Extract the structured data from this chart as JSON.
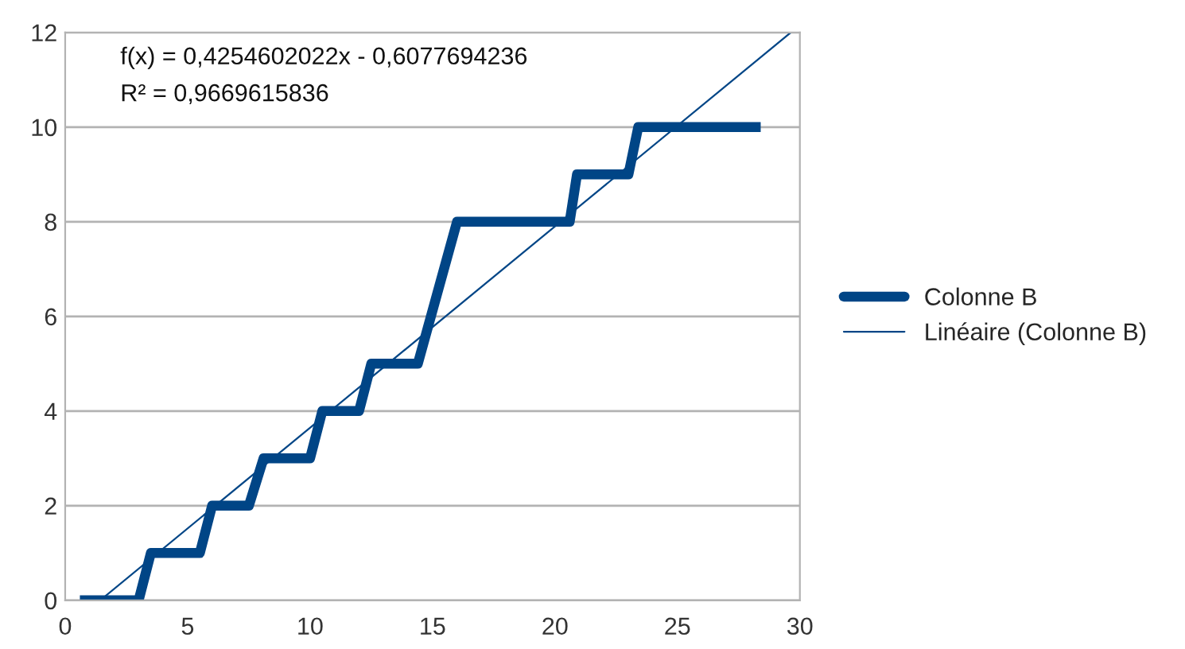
{
  "chart_data": {
    "type": "line",
    "annotations": [
      "f(x) = 0,4254602022x - 0,6077694236",
      "R² = 0,9669615836"
    ],
    "xlim": [
      0,
      30
    ],
    "xticks": [
      0,
      5,
      10,
      15,
      20,
      25,
      30
    ],
    "ylim": [
      0,
      12
    ],
    "yticks": [
      0,
      2,
      4,
      6,
      8,
      10,
      12
    ],
    "grid": "y",
    "legend": "right",
    "marker": "none",
    "series": [
      {
        "name": "Colonne B",
        "color": "#004586",
        "x": [
          0.6,
          3.0,
          3.5,
          5.5,
          6.0,
          7.5,
          8.1,
          10.0,
          10.5,
          12.0,
          12.5,
          14.4,
          16.0,
          20.6,
          20.9,
          23.0,
          23.4,
          28.4
        ],
        "values": [
          0,
          0,
          1,
          1,
          2,
          2,
          3,
          3,
          4,
          4,
          5,
          5,
          8,
          8,
          9,
          9,
          10,
          10
        ]
      },
      {
        "name": "Linéaire (Colonne B)",
        "color": "#004586",
        "line_style": "solid",
        "x": [
          1.43,
          29.63
        ],
        "values": [
          0,
          12
        ]
      }
    ]
  }
}
